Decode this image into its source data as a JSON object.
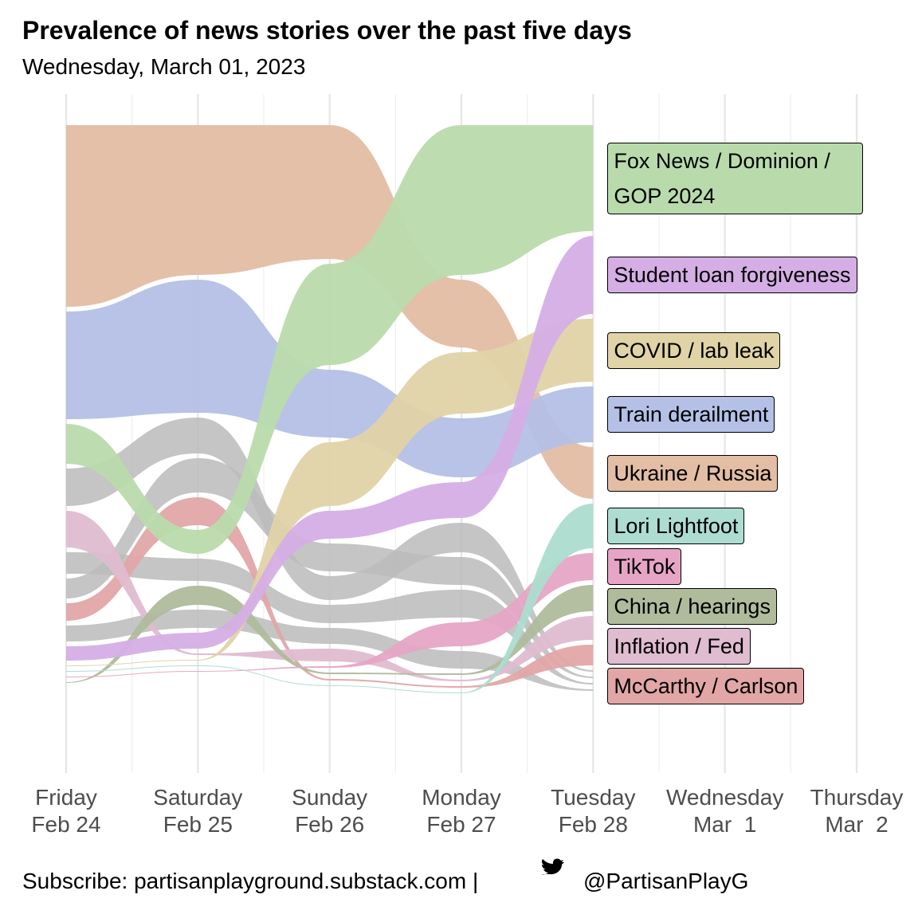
{
  "chart_data": {
    "type": "bump",
    "title": "Prevalence of news stories over the past five days",
    "subtitle": "Wednesday, March 01, 2023",
    "footer": "Subscribe: partisanplayground.substack.com |",
    "handle": "@PartisanPlayG",
    "categories": [
      "Friday\nFeb 24",
      "Saturday\nFeb 25",
      "Sunday\nFeb 26",
      "Monday\nFeb 27",
      "Tuesday\nFeb 28",
      "Wednesday\nMar  1",
      "Thursday\nMar  2"
    ],
    "grid": true,
    "series": [
      {
        "name": "Fox News / Dominion / GOP 2024",
        "color": "#b9dbac",
        "values": [
          50,
          30,
          127,
          188,
          133,
          null,
          null
        ]
      },
      {
        "name": "Student loan forgiveness",
        "color": "#d5aee6",
        "values": [
          18,
          20,
          35,
          45,
          98,
          null,
          null
        ]
      },
      {
        "name": "COVID / lab leak",
        "color": "#e0d3a6",
        "values": [
          1,
          1,
          80,
          77,
          79,
          null,
          null
        ]
      },
      {
        "name": "Train derailment",
        "color": "#b4c0e6",
        "values": [
          135,
          167,
          85,
          74,
          70,
          null,
          null
        ]
      },
      {
        "name": "Ukraine / Russia",
        "color": "#e3bda4",
        "values": [
          228,
          188,
          168,
          85,
          65,
          null,
          null
        ]
      },
      {
        "name": "Lori Lightfoot",
        "color": "#acddd0",
        "values": [
          1,
          1,
          1,
          1,
          56,
          null,
          null
        ]
      },
      {
        "name": "TikTok",
        "color": "#e6a5c5",
        "values": [
          1,
          1,
          2,
          30,
          34,
          null,
          null
        ]
      },
      {
        "name": "China / hearings",
        "color": "#b0bb9c",
        "values": [
          1,
          24,
          2,
          2,
          33,
          null,
          null
        ]
      },
      {
        "name": "Inflation / Fed",
        "color": "#dfbcd0",
        "values": [
          46,
          2,
          16,
          2,
          30,
          null,
          null
        ]
      },
      {
        "name": "McCarthy / Carlson",
        "color": "#e2a6a6",
        "values": [
          22,
          35,
          2,
          2,
          26,
          null,
          null
        ]
      },
      {
        "name": null,
        "color": "#bbbbbb",
        "values": [
          47,
          45,
          30,
          37,
          2,
          null,
          null
        ]
      },
      {
        "name": null,
        "color": "#bbbbbb",
        "values": [
          25,
          43,
          35,
          35,
          2,
          null,
          null
        ]
      },
      {
        "name": null,
        "color": "#bbbbbb",
        "values": [
          27,
          28,
          23,
          35,
          2,
          null,
          null
        ]
      },
      {
        "name": null,
        "color": "#bbbbbb",
        "values": [
          20,
          23,
          20,
          22,
          2,
          null,
          null
        ]
      }
    ]
  }
}
